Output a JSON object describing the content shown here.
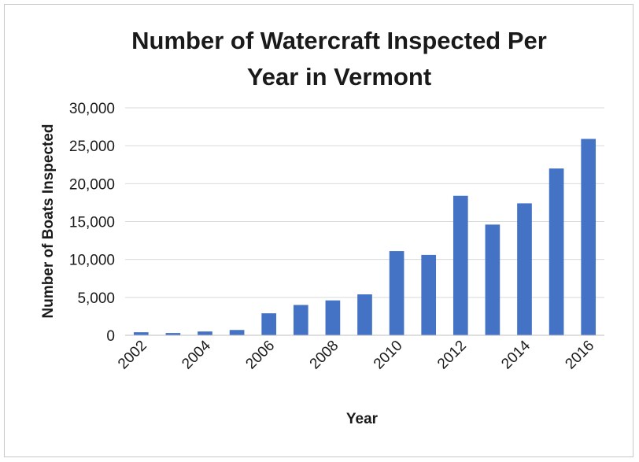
{
  "chart_data": {
    "type": "bar",
    "title_lines": [
      "Number of Watercraft Inspected Per",
      "Year in Vermont"
    ],
    "xlabel": "Year",
    "ylabel": "Number of Boats Inspected",
    "categories": [
      "2002",
      "2003",
      "2004",
      "2005",
      "2006",
      "2007",
      "2008",
      "2009",
      "2010",
      "2011",
      "2012",
      "2013",
      "2014",
      "2015",
      "2016"
    ],
    "x_tick_labels": [
      "2002",
      "",
      "2004",
      "",
      "2006",
      "",
      "2008",
      "",
      "2010",
      "",
      "2012",
      "",
      "2014",
      "",
      "2016"
    ],
    "values": [
      400,
      300,
      500,
      700,
      2900,
      4000,
      4600,
      5400,
      11100,
      10600,
      18400,
      14600,
      17400,
      22000,
      25900
    ],
    "ylim": [
      0,
      30000
    ],
    "y_ticks": [
      0,
      5000,
      10000,
      15000,
      20000,
      25000,
      30000
    ],
    "y_tick_labels": [
      "0",
      "5,000",
      "10,000",
      "15,000",
      "20,000",
      "25,000",
      "30,000"
    ],
    "grid": true,
    "legend": "none",
    "bar_color": "#4472c4",
    "grid_color": "#d9d9d9",
    "axis_color": "#bfbfbf"
  }
}
